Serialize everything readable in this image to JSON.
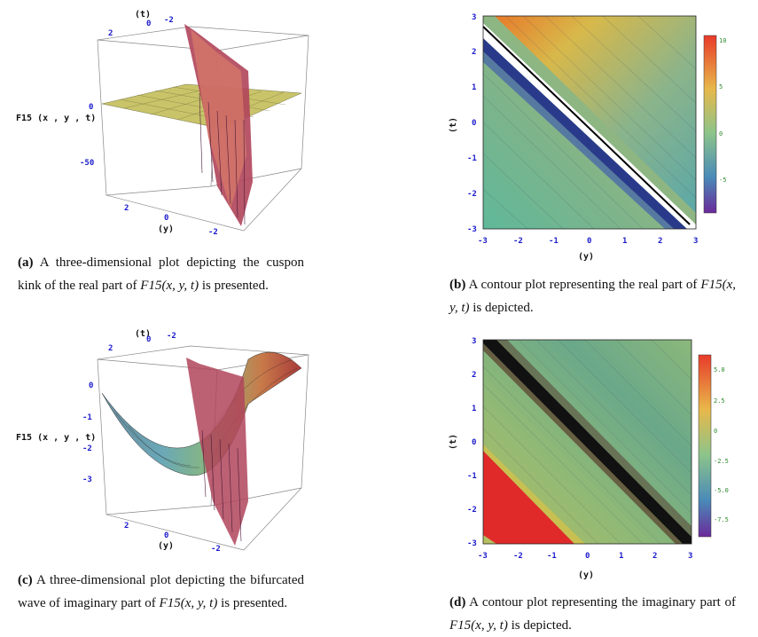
{
  "panels": [
    {
      "id": "a",
      "kind": "3d-surface",
      "zlabel": "F15 (x , y , t)",
      "ylabel": "(y)",
      "tlabel": "(t)",
      "zticks": [
        "0",
        "-50"
      ],
      "yticks": [
        "2",
        "0",
        "-2"
      ],
      "tticks": [
        "2",
        "0",
        "-2"
      ],
      "caption_tag": "(a)",
      "caption_text": "A three-dimensional plot depicting the cuspon kink of the real part of",
      "caption_math": "F15(x, y, t)",
      "caption_end": "is presented."
    },
    {
      "id": "b",
      "kind": "contour",
      "xlabel": "(y)",
      "ylabel": "(t)",
      "xticks": [
        "-3",
        "-2",
        "-1",
        "0",
        "1",
        "2",
        "3"
      ],
      "yticks": [
        "3",
        "2",
        "1",
        "0",
        "-1",
        "-2",
        "-3"
      ],
      "colorbar_ticks": [
        "10",
        "5",
        "0",
        "-5"
      ],
      "caption_tag": "(b)",
      "caption_text": "A contour plot representing the real part of",
      "caption_math": "F15(x, y, t)",
      "caption_end": "is depicted."
    },
    {
      "id": "c",
      "kind": "3d-surface",
      "zlabel": "F15 (x , y , t)",
      "ylabel": "(y)",
      "tlabel": "(t)",
      "zticks": [
        "0",
        "-1",
        "-2",
        "-3"
      ],
      "yticks": [
        "2",
        "0",
        "-2"
      ],
      "tticks": [
        "2",
        "0",
        "-2"
      ],
      "caption_tag": "(c)",
      "caption_text": "A three-dimensional plot depicting the bifurcated wave of imaginary part of",
      "caption_math": "F15(x, y, t)",
      "caption_end": "is presented."
    },
    {
      "id": "d",
      "kind": "contour",
      "xlabel": "(y)",
      "ylabel": "(t)",
      "xticks": [
        "-3",
        "-2",
        "-1",
        "0",
        "1",
        "2",
        "3"
      ],
      "yticks": [
        "3",
        "2",
        "1",
        "0",
        "-1",
        "-2",
        "-3"
      ],
      "colorbar_ticks": [
        "5.0",
        "2.5",
        "0",
        "-2.5",
        "-5.0",
        "-7.5"
      ],
      "caption_tag": "(d)",
      "caption_text": "A contour plot representing the imaginary part of",
      "caption_math": "F15(x, y, t)",
      "caption_end": "is depicted."
    }
  ]
}
